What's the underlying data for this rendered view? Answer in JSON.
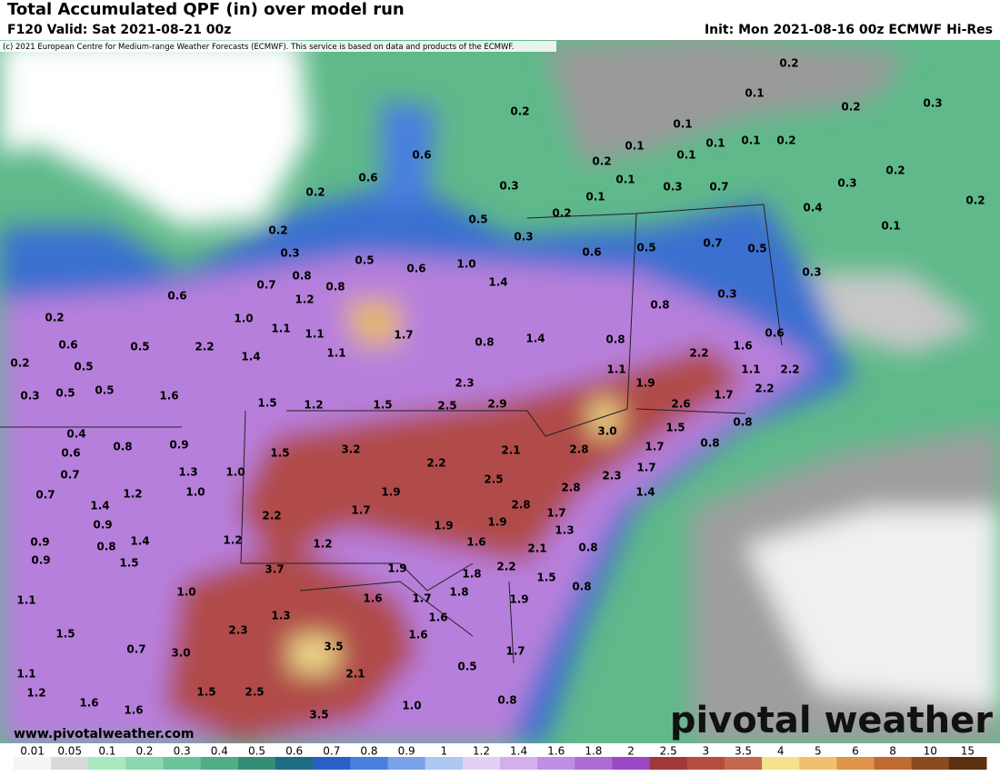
{
  "header": {
    "title": "Total Accumulated QPF (in) over model run",
    "valid": "F120 Valid: Sat 2021-08-21 00z",
    "init": "Init: Mon 2021-08-16 00z ECMWF Hi-Res",
    "copyright": "(c) 2021 European Centre for Medium-range Weather Forecasts (ECMWF). This service is based on data and products of the ECMWF."
  },
  "map": {
    "labels": [
      "0.2",
      "0.1",
      "0.2",
      "0.2",
      "0.3",
      "0.1",
      "0.1",
      "0.1",
      "0.1",
      "0.2",
      "0.1",
      "0.6",
      "0.2",
      "0.1",
      "0.6",
      "0.2",
      "0.3",
      "0.1",
      "0.3",
      "0.7",
      "0.2",
      "0.3",
      "0.4",
      "0.2",
      "0.2",
      "0.5",
      "0.2",
      "0.3",
      "0.6",
      "0.5",
      "0.7",
      "0.5",
      "0.1",
      "0.3",
      "0.5",
      "0.6",
      "1.0",
      "1.4",
      "0.8",
      "0.7",
      "0.8",
      "0.3",
      "0.6",
      "1.2",
      "0.8",
      "0.3",
      "0.2",
      "1.0",
      "1.1",
      "1.1",
      "1.7",
      "0.6",
      "0.5",
      "2.2",
      "0.8",
      "1.4",
      "0.8",
      "1.6",
      "0.6",
      "1.1",
      "1.4",
      "0.2",
      "0.5",
      "2.2",
      "1.1",
      "2.2",
      "0.3",
      "0.5",
      "0.5",
      "1.6",
      "1.5",
      "1.2",
      "1.5",
      "2.5",
      "2.3",
      "2.9",
      "1.1",
      "1.9",
      "2.6",
      "1.7",
      "2.2",
      "0.4",
      "0.8",
      "0.9",
      "3.0",
      "1.5",
      "0.8",
      "0.6",
      "1.5",
      "3.2",
      "2.1",
      "2.8",
      "1.7",
      "0.8",
      "0.7",
      "1.3",
      "1.0",
      "2.2",
      "1.7",
      "0.7",
      "1.2",
      "1.0",
      "1.9",
      "2.5",
      "2.3",
      "2.8",
      "1.4",
      "1.4",
      "2.8",
      "1.7",
      "2.2",
      "1.7",
      "0.9",
      "1.9",
      "1.9",
      "1.3",
      "0.9",
      "0.8",
      "1.4",
      "1.2",
      "1.2",
      "1.6",
      "2.1",
      "0.8",
      "0.9",
      "1.5",
      "3.7",
      "1.9",
      "1.8",
      "2.2",
      "1.5",
      "1.0",
      "1.6",
      "1.7",
      "1.8",
      "1.9",
      "0.8",
      "1.1",
      "1.3",
      "1.6",
      "1.5",
      "2.3",
      "1.6",
      "0.7",
      "3.0",
      "3.5",
      "1.7",
      "2.1",
      "0.5",
      "1.1",
      "1.2",
      "1.5",
      "2.5",
      "1.6",
      "1.6",
      "1.0",
      "3.5",
      "0.8"
    ]
  },
  "footer": {
    "website": "www.pivotalweather.com",
    "logo": "pivotal weather"
  },
  "colorbar": {
    "labels": [
      "0.01",
      "0.05",
      "0.1",
      "0.2",
      "0.3",
      "0.4",
      "0.5",
      "0.6",
      "0.7",
      "0.8",
      "0.9",
      "1",
      "1.2",
      "1.4",
      "1.6",
      "1.8",
      "2",
      "2.5",
      "3",
      "3.5",
      "4",
      "5",
      "6",
      "8",
      "10",
      "15"
    ],
    "colors": [
      "#f5f5f5",
      "#d9d9d9",
      "#a8e8c0",
      "#8cd7ad",
      "#6cc59a",
      "#4fae86",
      "#338e76",
      "#1c6c84",
      "#2a5fc8",
      "#4a7ee0",
      "#7aa2ec",
      "#aec7f3",
      "#e3d0f5",
      "#d3b0ec",
      "#c08ee2",
      "#ad6bd6",
      "#9a48c8",
      "#a0383a",
      "#b54d3e",
      "#c46850",
      "#f4e28a",
      "#f0c070",
      "#e0944a",
      "#c06a30",
      "#8a4a20",
      "#5a3010"
    ]
  }
}
